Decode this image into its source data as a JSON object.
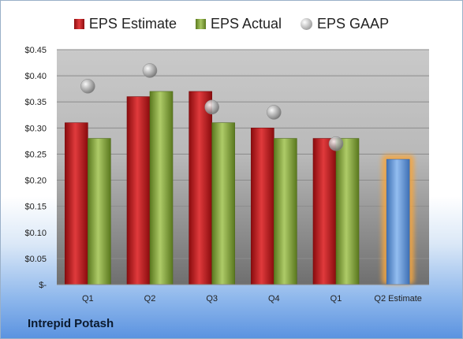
{
  "company": "Intrepid Potash",
  "legend": {
    "estimate": "EPS Estimate",
    "actual": "EPS Actual",
    "gaap": "EPS GAAP"
  },
  "colors": {
    "estimate": "#c9191c",
    "actual": "#8cab45",
    "gaap": "#a9a9a9",
    "q2_estimate": "#6a9bd8",
    "highlight": "#f4a640"
  },
  "chart_data": {
    "type": "bar",
    "categories": [
      "Q1",
      "Q2",
      "Q3",
      "Q4",
      "Q1",
      "Q2 Estimate"
    ],
    "series": [
      {
        "name": "EPS Estimate",
        "values": [
          0.31,
          0.36,
          0.37,
          0.3,
          0.28,
          null
        ]
      },
      {
        "name": "EPS Actual",
        "values": [
          0.28,
          0.37,
          0.31,
          0.28,
          0.28,
          0.24
        ]
      },
      {
        "name": "EPS GAAP",
        "values": [
          0.38,
          0.41,
          0.34,
          0.33,
          0.27,
          null
        ]
      }
    ],
    "ylim": [
      0,
      0.45
    ],
    "yticks": [
      0,
      0.05,
      0.1,
      0.15,
      0.2,
      0.25,
      0.3,
      0.35,
      0.4,
      0.45
    ],
    "ytick_labels": [
      "$-",
      "$0.05",
      "$0.10",
      "$0.15",
      "$0.20",
      "$0.25",
      "$0.30",
      "$0.35",
      "$0.40",
      "$0.45"
    ],
    "grid": true,
    "legend_position": "top"
  }
}
